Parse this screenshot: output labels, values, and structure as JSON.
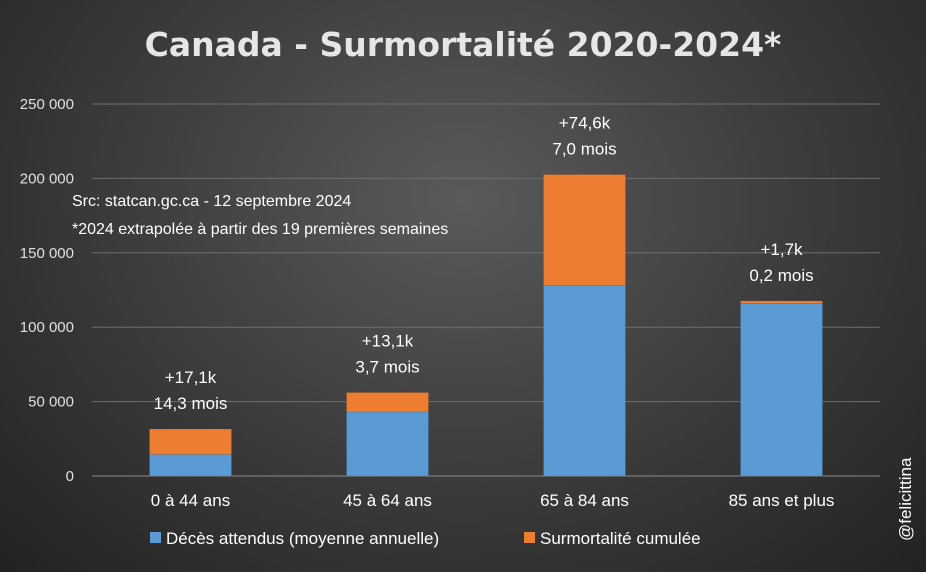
{
  "chart_data": {
    "type": "bar",
    "stacked": true,
    "title": "Canada - Surmortalité 2020-2024*",
    "categories": [
      "0 à 44 ans",
      "45 à 64 ans",
      "65 à 84 ans",
      "85 ans et plus"
    ],
    "series": [
      {
        "name": "Décès attendus (moyenne annuelle)",
        "color": "#5b9bd5",
        "values": [
          14500,
          43000,
          128000,
          116000
        ]
      },
      {
        "name": "Surmortalité cumulée",
        "color": "#ed7d31",
        "values": [
          17100,
          13100,
          74600,
          1700
        ]
      }
    ],
    "annotations": [
      {
        "line1": "+17,1k",
        "line2": "14,3 mois"
      },
      {
        "line1": "+13,1k",
        "line2": "3,7 mois"
      },
      {
        "line1": "+74,6k",
        "line2": "7,0 mois"
      },
      {
        "line1": "+1,7k",
        "line2": "0,2 mois"
      }
    ],
    "ylim": [
      0,
      250000
    ],
    "yticks": [
      0,
      50000,
      100000,
      150000,
      200000,
      250000
    ],
    "ytick_labels": [
      "0",
      "50 000",
      "100 000",
      "150 000",
      "200 000",
      "250 000"
    ],
    "grid": true,
    "legend_position": "bottom",
    "notes": [
      "Src: statcan.gc.ca - 12 septembre 2024",
      "*2024 extrapolée à partir des 19 premières semaines"
    ],
    "credit": "@felicittina"
  }
}
